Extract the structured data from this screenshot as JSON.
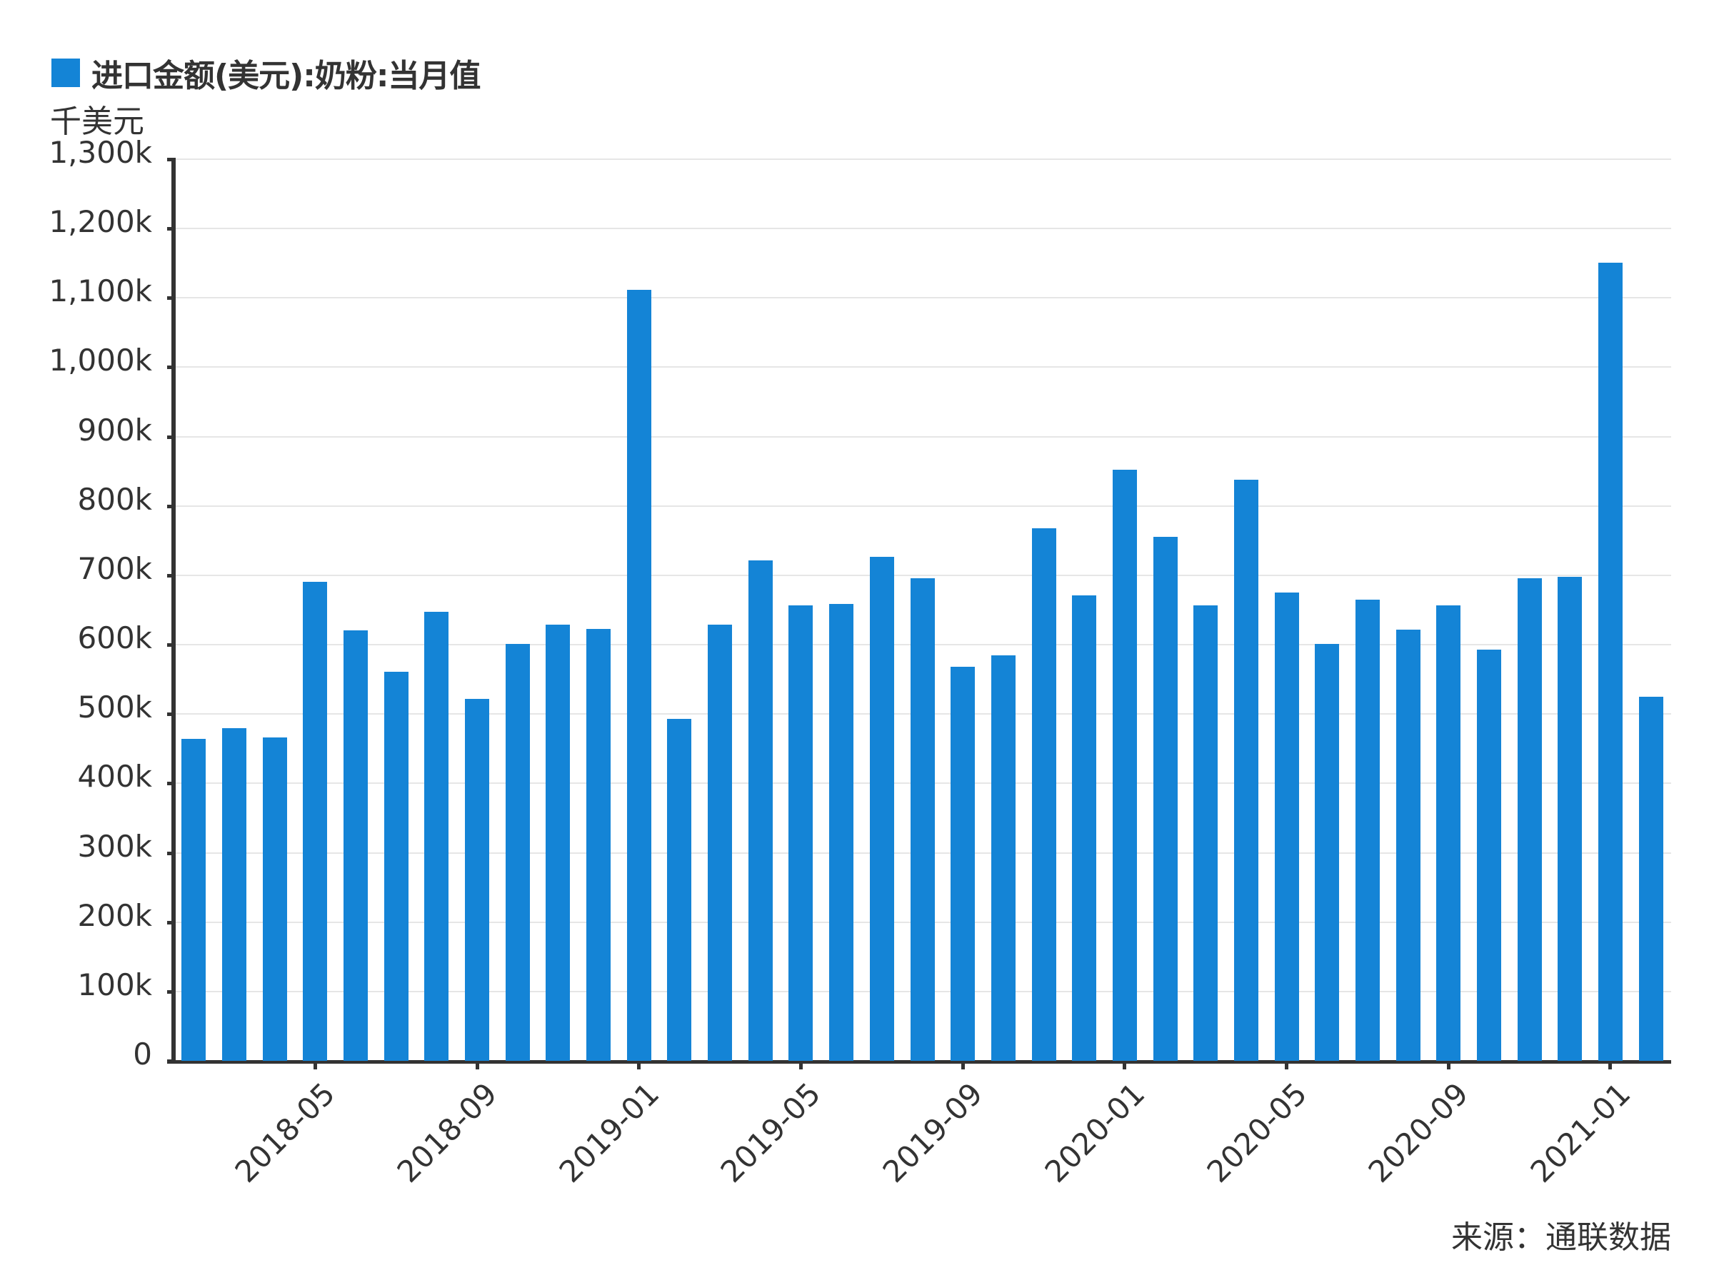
{
  "legend": {
    "label": "进口金额(美元):奶粉:当月值",
    "color": "#1484d6"
  },
  "unit_label": "千美元",
  "source": "来源：通联数据",
  "colors": {
    "bar": "#1484d6",
    "axis": "#333333",
    "grid": "#e6e6e6",
    "text": "#333333"
  },
  "chart_data": {
    "type": "bar",
    "title": "进口金额(美元):奶粉:当月值",
    "xlabel": "",
    "ylabel": "千美元",
    "ylim": [
      0,
      1300
    ],
    "yticks": [
      0,
      100,
      200,
      300,
      400,
      500,
      600,
      700,
      800,
      900,
      1000,
      1100,
      1200,
      1300
    ],
    "ytick_labels": [
      "0",
      "100k",
      "200k",
      "300k",
      "400k",
      "500k",
      "600k",
      "700k",
      "800k",
      "900k",
      "1,000k",
      "1,100k",
      "1,200k",
      "1,300k"
    ],
    "xtick_labels": [
      "2018-05",
      "2018-09",
      "2019-01",
      "2019-05",
      "2019-09",
      "2020-01",
      "2020-05",
      "2020-09",
      "2021-01"
    ],
    "grid": true,
    "legend_position": "top-left",
    "categories": [
      "2018-02",
      "2018-03",
      "2018-04",
      "2018-05",
      "2018-06",
      "2018-07",
      "2018-08",
      "2018-09",
      "2018-10",
      "2018-11",
      "2018-12",
      "2019-01",
      "2019-02",
      "2019-03",
      "2019-04",
      "2019-05",
      "2019-06",
      "2019-07",
      "2019-08",
      "2019-09",
      "2019-10",
      "2019-11",
      "2019-12",
      "2020-01",
      "2020-02",
      "2020-03",
      "2020-04",
      "2020-05",
      "2020-06",
      "2020-07",
      "2020-08",
      "2020-09",
      "2020-10",
      "2020-11",
      "2020-12",
      "2021-01",
      "2021-02"
    ],
    "series": [
      {
        "name": "进口金额(美元):奶粉:当月值",
        "unit": "千美元",
        "values": [
          464,
          480,
          466,
          691,
          621,
          561,
          647,
          522,
          601,
          629,
          623,
          1112,
          493,
          629,
          722,
          657,
          659,
          727,
          696,
          568,
          585,
          768,
          671,
          852,
          756,
          657,
          838,
          675,
          601,
          665,
          622,
          657,
          593,
          696,
          698,
          1151,
          525
        ]
      }
    ]
  }
}
